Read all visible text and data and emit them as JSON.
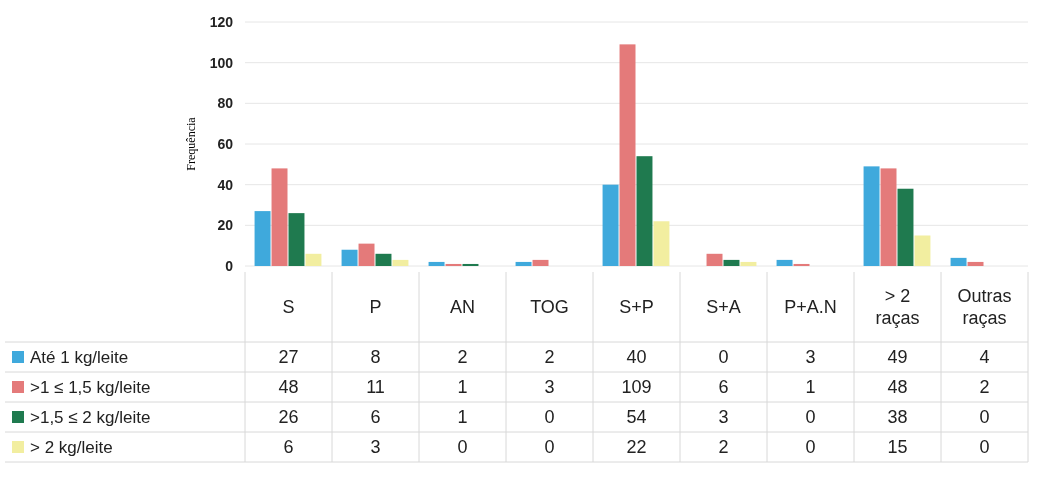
{
  "chart_data": {
    "type": "bar",
    "ylabel": "Frequência",
    "categories": [
      "S",
      "P",
      "AN",
      "TOG",
      "S+P",
      "S+A",
      "P+A.N",
      "> 2 raças",
      "Outras raças"
    ],
    "series": [
      {
        "name": "Até 1 kg/leite",
        "color": "#3fa9dc",
        "values": [
          27,
          8,
          2,
          2,
          40,
          0,
          3,
          49,
          4
        ]
      },
      {
        "name": ">1 ≤ 1,5 kg/leite",
        "color": "#e47a7a",
        "values": [
          48,
          11,
          1,
          3,
          109,
          6,
          1,
          48,
          2
        ]
      },
      {
        "name": ">1,5 ≤ 2 kg/leite",
        "color": "#1f7a4f",
        "values": [
          26,
          6,
          1,
          0,
          54,
          3,
          0,
          38,
          0
        ]
      },
      {
        "name": "> 2 kg/leite",
        "color": "#f2eea0",
        "values": [
          6,
          3,
          0,
          0,
          22,
          2,
          0,
          15,
          0
        ]
      }
    ],
    "ylim": [
      0,
      120
    ],
    "yticks": [
      0,
      20,
      40,
      60,
      80,
      100,
      120
    ],
    "grid": "y",
    "legend": "left",
    "data_labels": true
  }
}
